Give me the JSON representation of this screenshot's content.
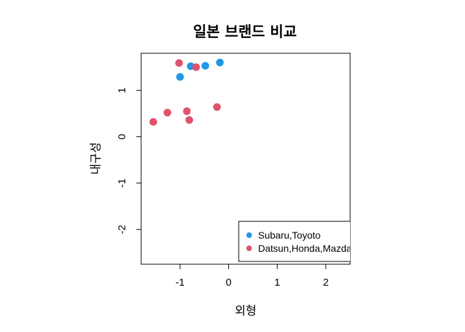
{
  "chart_data": {
    "type": "scatter",
    "title": "일본 브랜드 비교",
    "xlabel": "외형",
    "ylabel": "내구성",
    "xlim": [
      -1.8,
      2.5
    ],
    "ylim": [
      -2.75,
      1.8
    ],
    "x_ticks": [
      -1,
      0,
      1,
      2
    ],
    "y_ticks": [
      -2,
      -1,
      0,
      1
    ],
    "grid": false,
    "legend_position": "bottom-right",
    "series": [
      {
        "name": "Subaru,Toyoto",
        "color": "#2297E6",
        "points": [
          {
            "x": -0.18,
            "y": 1.6
          },
          {
            "x": -0.48,
            "y": 1.53
          },
          {
            "x": -0.78,
            "y": 1.52
          },
          {
            "x": -1.0,
            "y": 1.29
          }
        ]
      },
      {
        "name": "Datsun,Honda,Mazda",
        "color": "#DF536B",
        "points": [
          {
            "x": -1.02,
            "y": 1.59
          },
          {
            "x": -0.67,
            "y": 1.5
          },
          {
            "x": -0.24,
            "y": 0.64
          },
          {
            "x": -0.86,
            "y": 0.55
          },
          {
            "x": -1.26,
            "y": 0.52
          },
          {
            "x": -0.81,
            "y": 0.36
          },
          {
            "x": -1.55,
            "y": 0.32
          }
        ]
      }
    ]
  }
}
